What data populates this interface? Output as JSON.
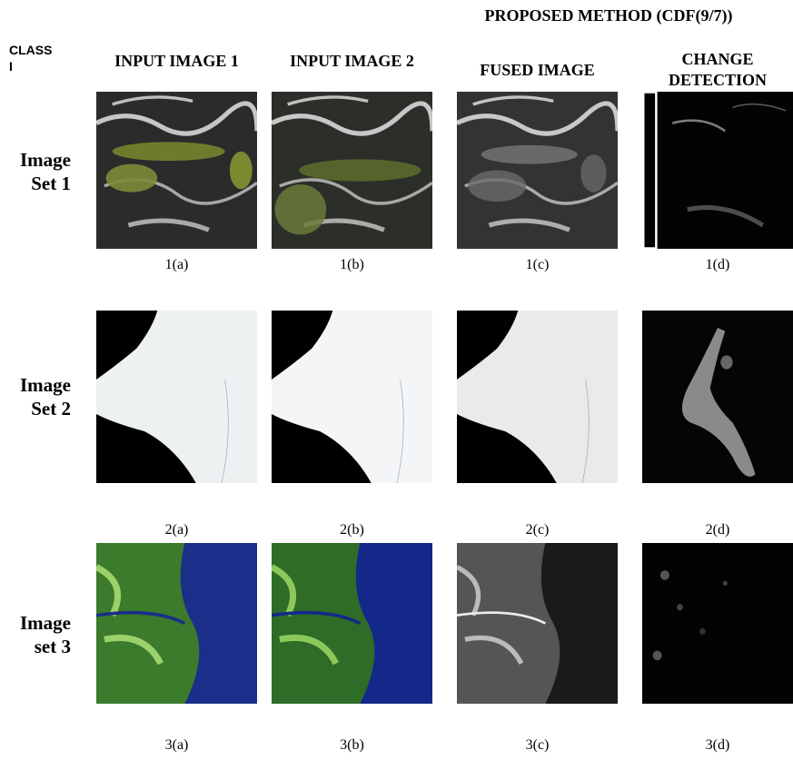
{
  "header": {
    "proposed_method": "PROPOSED METHOD (CDF(9/7))",
    "class_label": "CLASS I",
    "columns": [
      "INPUT IMAGE 1",
      "INPUT IMAGE 2",
      "FUSED IMAGE",
      "CHANGE DETECTION"
    ]
  },
  "rows": [
    {
      "label": "Image Set 1",
      "captions": [
        "1(a)",
        "1(b)",
        "1(c)",
        "1(d)"
      ]
    },
    {
      "label": "Image Set 2",
      "captions": [
        "2(a)",
        "2(b)",
        "2(c)",
        "2(d)"
      ]
    },
    {
      "label": "Image set 3",
      "captions": [
        "3(a)",
        "3(b)",
        "3(c)",
        "3(d)"
      ]
    }
  ]
}
